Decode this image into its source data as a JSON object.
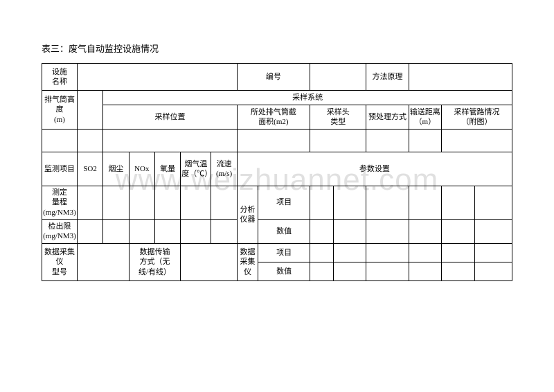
{
  "title": "表三：废气自动监控设施情况",
  "watermark": "www.weizhuannet.com",
  "labels": {
    "facility_name": "设施\n名称",
    "number": "编号",
    "method_principle": "方法原理",
    "stack_height": "排气筒高度\n(m)",
    "sampling_system": "采样系统",
    "sampling_position": "采样位置",
    "cross_area": "所处排气筒截\n面积(m2)",
    "probe_type": "采样头\n类型",
    "pretreatment": "预处理方式",
    "transport_distance": "输送距离\n（m）",
    "pipeline_status": "采样管路情况\n（附图）",
    "monitor_items": "监测项目",
    "so2": "SO2",
    "smoke": "烟尘",
    "nox": "NOx",
    "oxygen": "氧量",
    "flue_temp": "烟气温\n度（℃）",
    "flow_rate": "流速\n(m/s)",
    "param_setting": "参数设置",
    "measure_range": "测定\n量程\n(mg/NM3)",
    "detection_limit": "检出限\n(mg/NM3)",
    "analyzer": "分析\n仪器",
    "item": "项目",
    "value": "数值",
    "data_collector_model": "数据采集仪\n型号",
    "data_transfer": "数据传输\n方式（无\n线/有线）",
    "data_collector": "数据\n采集仪"
  }
}
